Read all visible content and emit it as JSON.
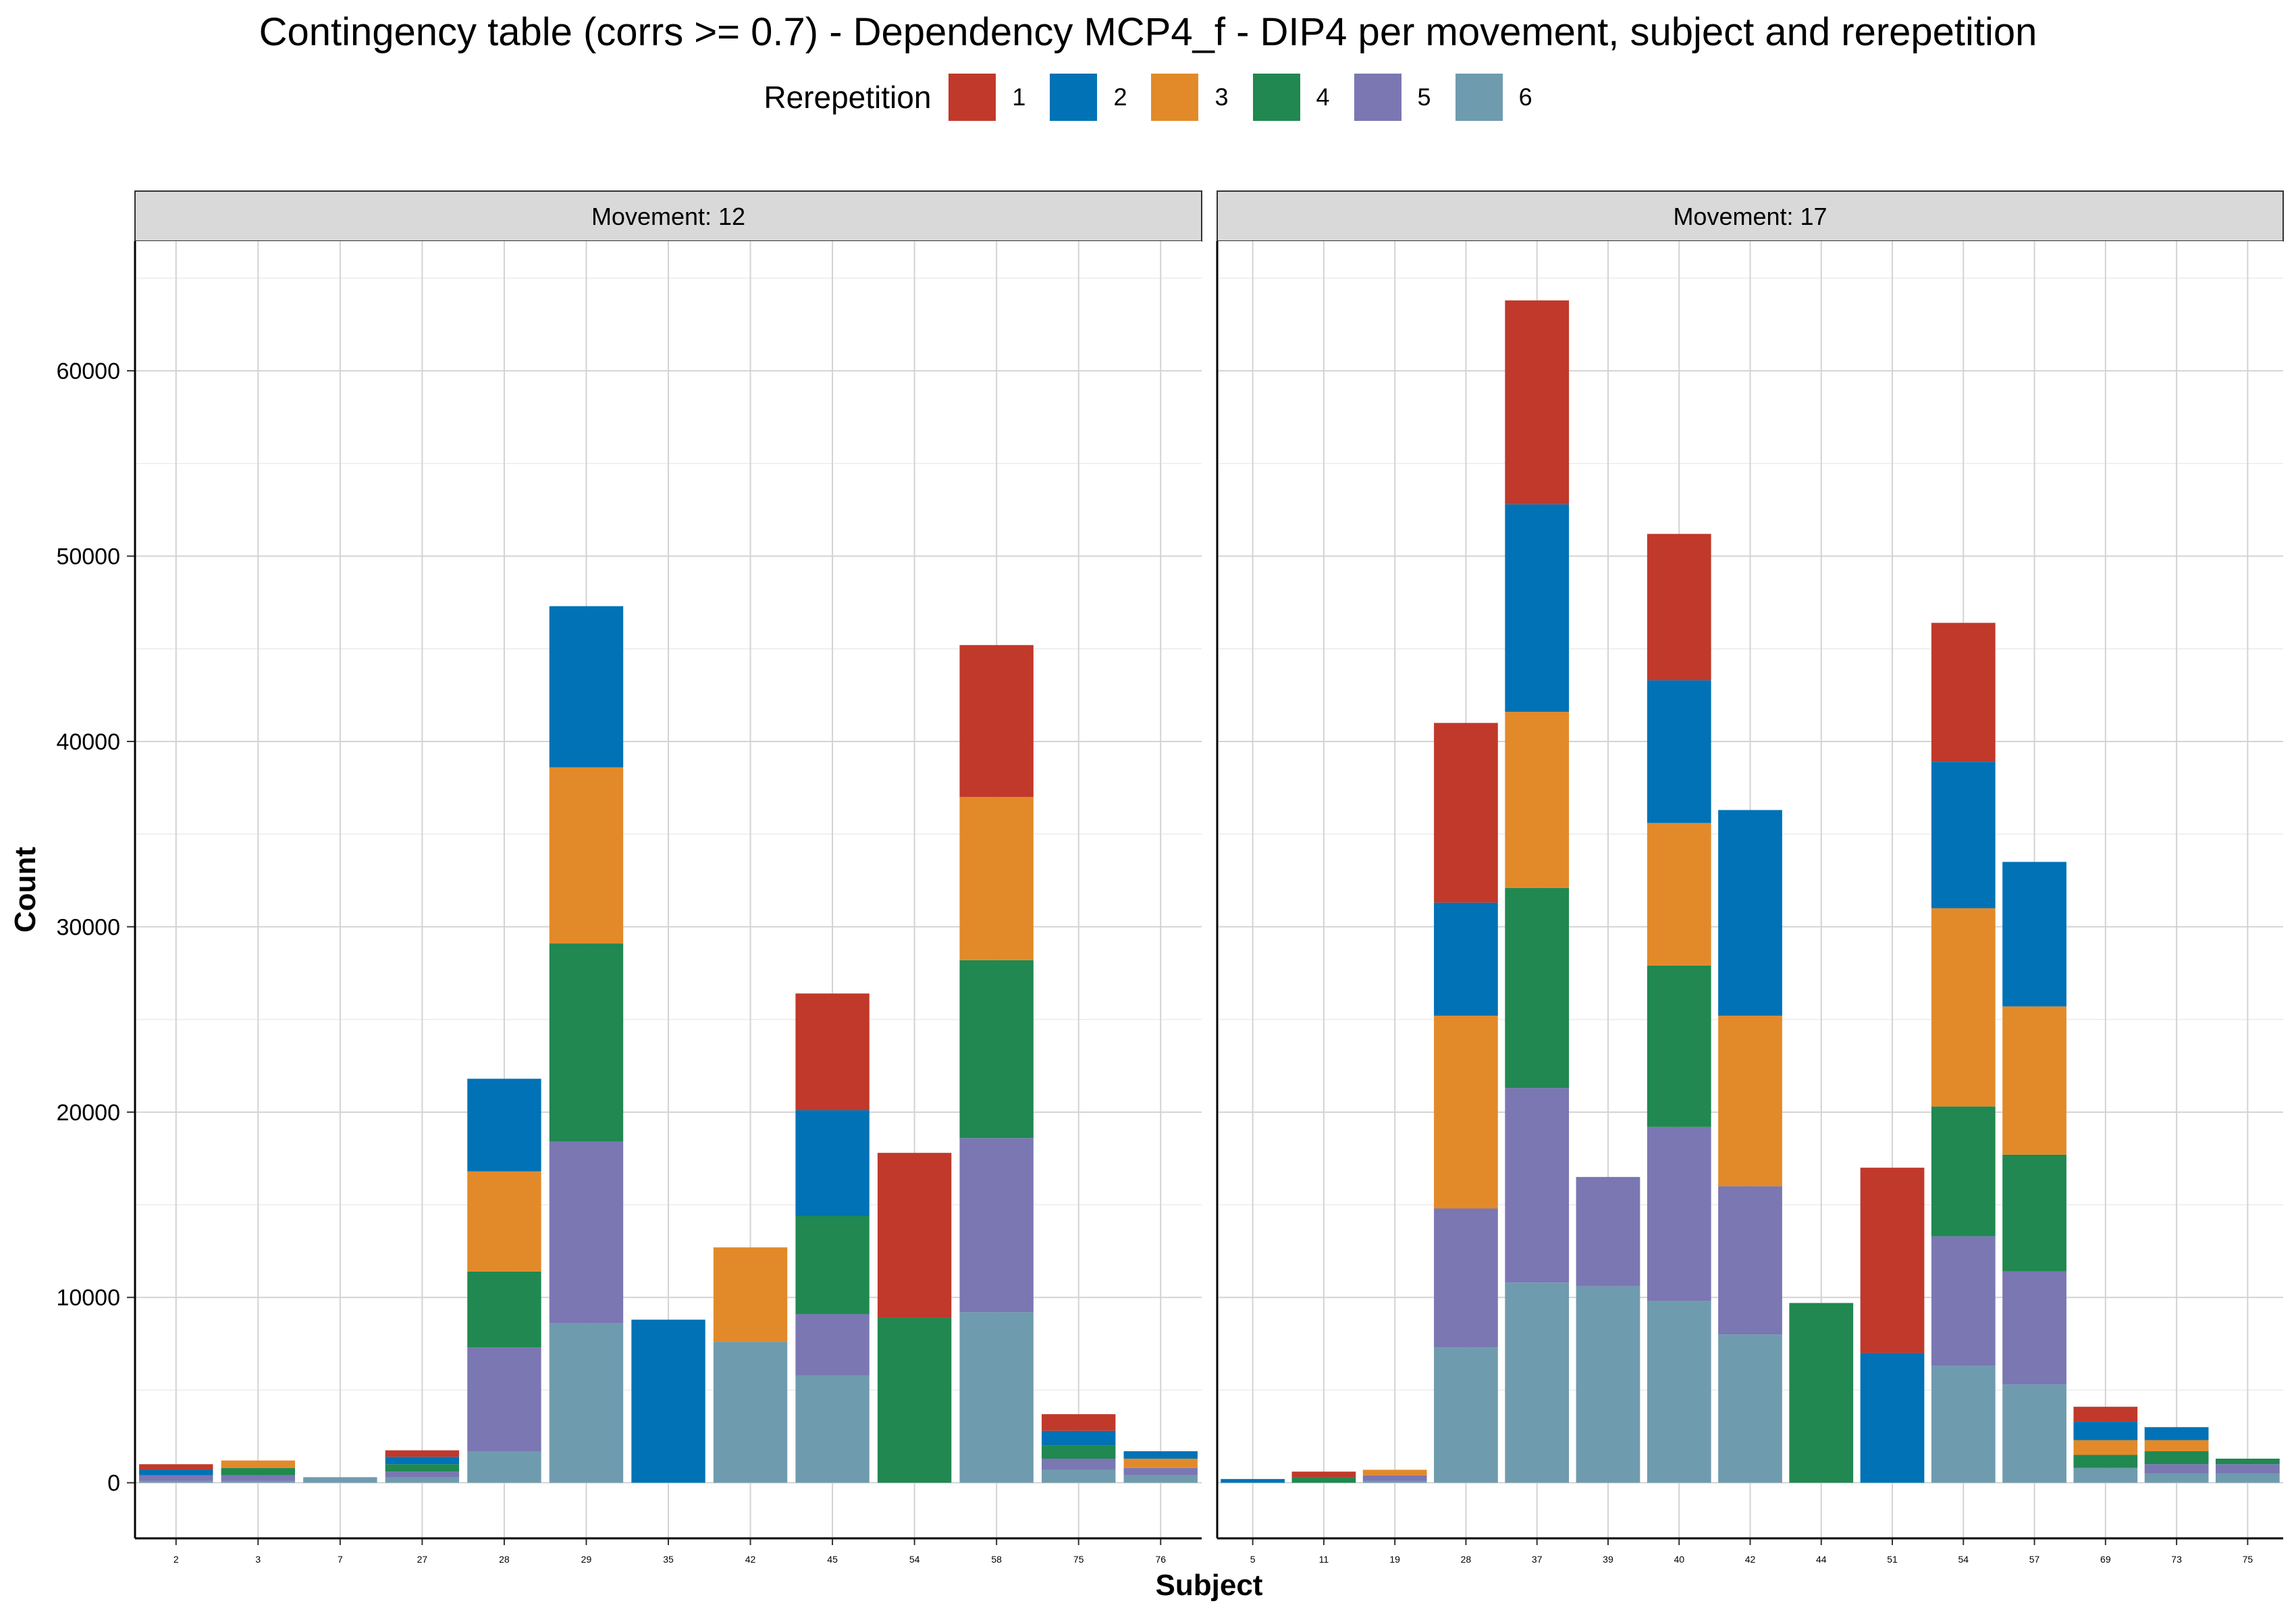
{
  "chart_data": {
    "type": "bar",
    "stacked": true,
    "title": "Contingency table (corrs >= 0.7) - Dependency MCP4_f - DIP4 per movement, subject and rerepetition",
    "xlabel": "Subject",
    "ylabel": "Count",
    "ylim": [
      -3000,
      67000
    ],
    "yticks": [
      0,
      10000,
      20000,
      30000,
      40000,
      50000,
      60000
    ],
    "grid": true,
    "legend": {
      "title": "Rerepetition",
      "placement": "top",
      "entries": [
        {
          "label": "1",
          "color": "#C0392B"
        },
        {
          "label": "2",
          "color": "#0072B5"
        },
        {
          "label": "3",
          "color": "#E28A2A"
        },
        {
          "label": "4",
          "color": "#208850"
        },
        {
          "label": "5",
          "color": "#7A77B3"
        },
        {
          "label": "6",
          "color": "#6F9BAE"
        }
      ]
    },
    "panels": [
      {
        "title": "Movement: 12",
        "categories": [
          "2",
          "3",
          "7",
          "27",
          "28",
          "29",
          "35",
          "42",
          "45",
          "54",
          "58",
          "75",
          "76"
        ],
        "series": [
          {
            "name": "1",
            "values": [
              300,
              0,
              0,
              350,
              0,
              0,
              0,
              0,
              6300,
              8900,
              8200,
              900,
              0
            ]
          },
          {
            "name": "2",
            "values": [
              300,
              0,
              0,
              400,
              5000,
              8700,
              8800,
              0,
              5700,
              0,
              0,
              800,
              400
            ]
          },
          {
            "name": "3",
            "values": [
              0,
              400,
              0,
              0,
              5400,
              9500,
              0,
              5100,
              0,
              0,
              8800,
              0,
              500
            ]
          },
          {
            "name": "4",
            "values": [
              0,
              400,
              0,
              400,
              4100,
              10700,
              0,
              0,
              5300,
              8900,
              9600,
              700,
              0
            ]
          },
          {
            "name": "5",
            "values": [
              300,
              300,
              0,
              300,
              5600,
              9800,
              0,
              0,
              3300,
              0,
              9400,
              600,
              400
            ]
          },
          {
            "name": "6",
            "values": [
              100,
              100,
              300,
              300,
              1700,
              8600,
              0,
              7600,
              5800,
              0,
              9200,
              700,
              400
            ]
          }
        ]
      },
      {
        "title": "Movement: 17",
        "categories": [
          "5",
          "11",
          "19",
          "28",
          "37",
          "39",
          "40",
          "42",
          "44",
          "51",
          "54",
          "57",
          "69",
          "73",
          "75"
        ],
        "series": [
          {
            "name": "1",
            "values": [
              0,
              300,
              0,
              9700,
              11000,
              0,
              7900,
              0,
              0,
              10000,
              7500,
              0,
              800,
              0,
              0
            ]
          },
          {
            "name": "2",
            "values": [
              200,
              0,
              0,
              6100,
              11200,
              0,
              7700,
              11100,
              0,
              7000,
              7900,
              7800,
              1000,
              700,
              0
            ]
          },
          {
            "name": "3",
            "values": [
              0,
              0,
              300,
              10400,
              9500,
              0,
              7700,
              9200,
              0,
              0,
              10700,
              8000,
              800,
              600,
              0
            ]
          },
          {
            "name": "4",
            "values": [
              0,
              300,
              0,
              0,
              10800,
              0,
              8700,
              0,
              9700,
              0,
              7000,
              6300,
              700,
              700,
              300
            ]
          },
          {
            "name": "5",
            "values": [
              0,
              0,
              300,
              7500,
              10500,
              5900,
              9400,
              8000,
              0,
              0,
              7000,
              6100,
              0,
              500,
              500
            ]
          },
          {
            "name": "6",
            "values": [
              0,
              0,
              100,
              7300,
              10800,
              10600,
              9800,
              8000,
              0,
              0,
              6300,
              5300,
              800,
              500,
              500
            ]
          }
        ]
      }
    ]
  }
}
